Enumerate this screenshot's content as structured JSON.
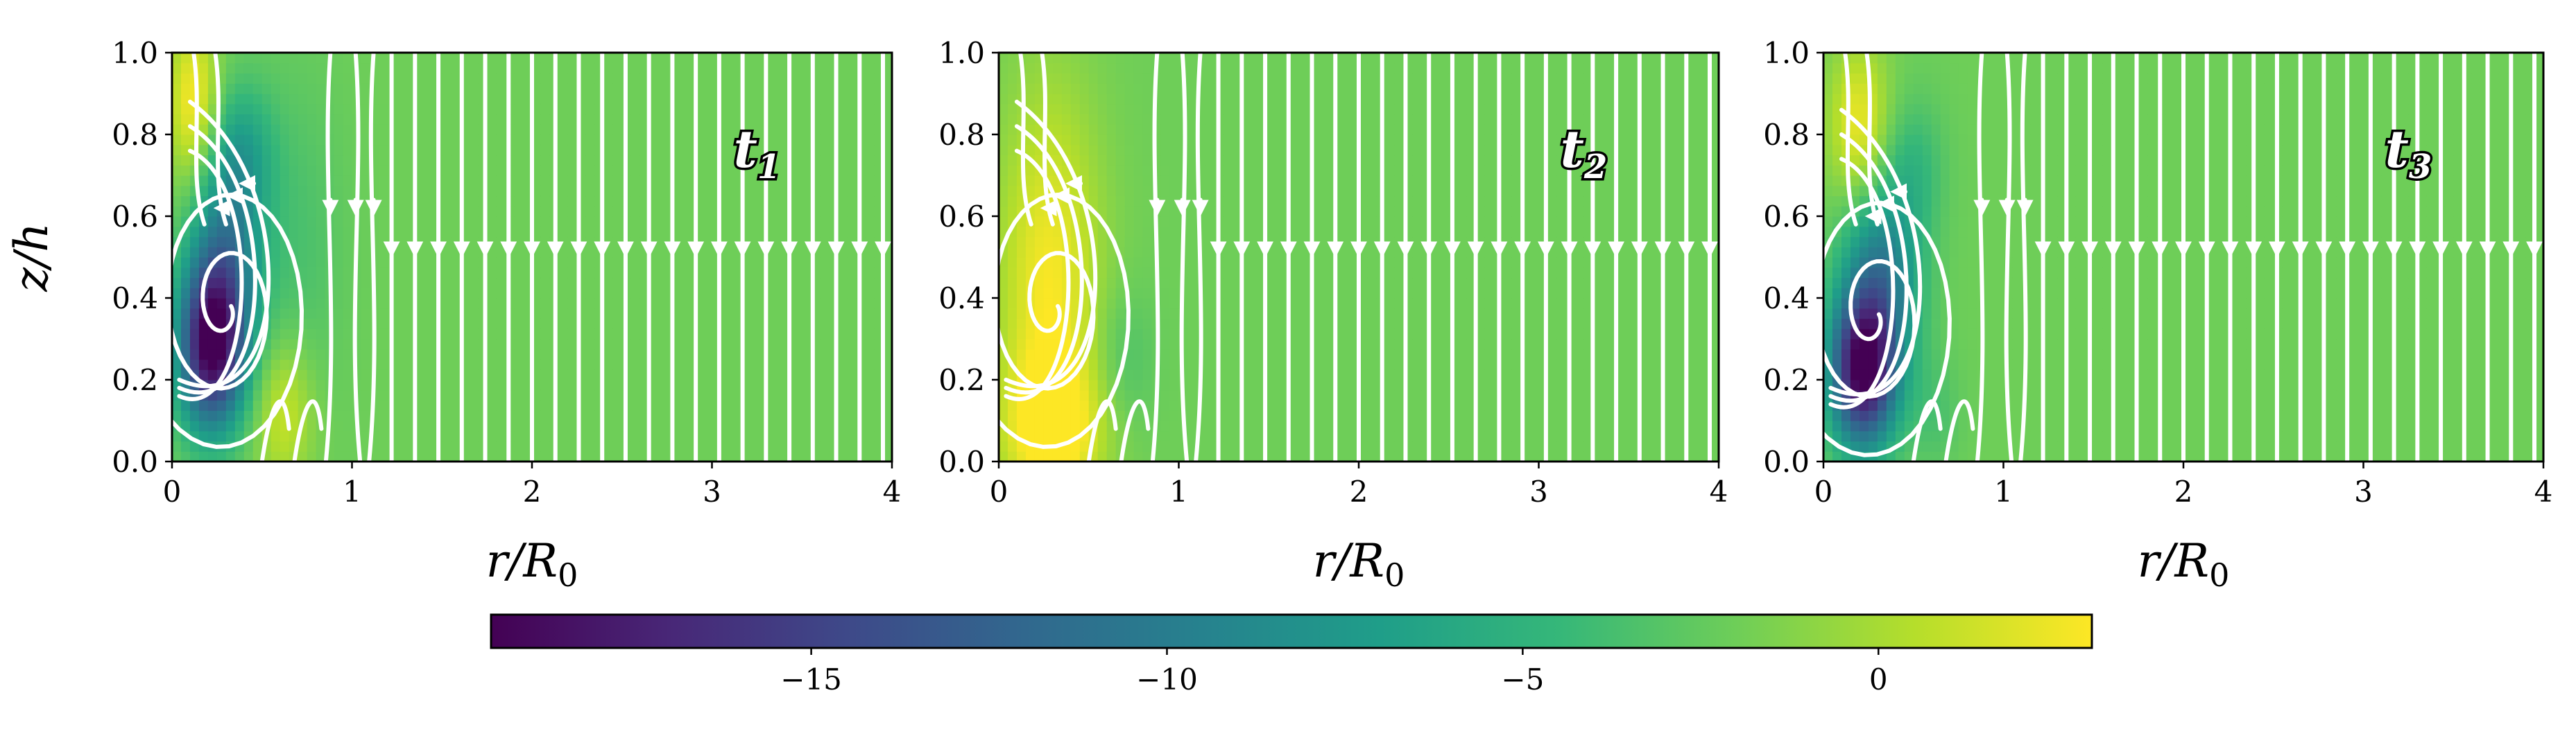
{
  "figure": {
    "title": "",
    "colormap": "viridis",
    "colormap_stops": [
      "#440154",
      "#482777",
      "#3e4989",
      "#31688e",
      "#26828e",
      "#1f9e89",
      "#35b779",
      "#6ece58",
      "#b5de2b",
      "#fde725"
    ],
    "background_color": "#8fd744",
    "streamline_color": "#ffffff"
  },
  "chart_data": [
    {
      "type": "heatmap",
      "panel": "t1",
      "title": "",
      "annotation": {
        "base": "t",
        "sub": "1"
      },
      "xlabel": {
        "base": "r/R",
        "sub": "0"
      },
      "ylabel": "z/h",
      "xlim": [
        0,
        4
      ],
      "ylim": [
        0,
        1
      ],
      "xticks": [
        "0",
        "1",
        "2",
        "3",
        "4"
      ],
      "yticks": [
        "0.0",
        "0.2",
        "0.4",
        "0.6",
        "0.8",
        "1.0"
      ],
      "background_value": -2,
      "features": [
        {
          "r": 0.22,
          "z": 0.28,
          "sr": 0.13,
          "sz": 0.14,
          "value": -19.0
        },
        {
          "r": 0.3,
          "z": 0.5,
          "sr": 0.14,
          "sz": 0.16,
          "value": -9.0
        },
        {
          "r": 0.38,
          "z": 0.75,
          "sr": 0.13,
          "sz": 0.12,
          "value": -6.5
        },
        {
          "r": 0.12,
          "z": 0.88,
          "sr": 0.1,
          "sz": 0.14,
          "value": 3.0
        },
        {
          "r": 0.62,
          "z": 0.12,
          "sr": 0.12,
          "sz": 0.13,
          "value": 1.5
        },
        {
          "r": 0.7,
          "z": 0.52,
          "sr": 0.18,
          "sz": 0.3,
          "value": -3.5
        }
      ],
      "vortex": {
        "r": 0.3,
        "z": 0.38
      },
      "uniform_downflow_z": 0.53
    },
    {
      "type": "heatmap",
      "panel": "t2",
      "title": "",
      "annotation": {
        "base": "t",
        "sub": "2"
      },
      "xlabel": {
        "base": "r/R",
        "sub": "0"
      },
      "ylabel": "",
      "xlim": [
        0,
        4
      ],
      "ylim": [
        0,
        1
      ],
      "xticks": [
        "0",
        "1",
        "2",
        "3",
        "4"
      ],
      "yticks": [
        "0.0",
        "0.2",
        "0.4",
        "0.6",
        "0.8",
        "1.0"
      ],
      "background_value": -2,
      "features": [
        {
          "r": 0.28,
          "z": 0.42,
          "sr": 0.2,
          "sz": 0.34,
          "value": 2.8
        },
        {
          "r": 0.3,
          "z": 0.08,
          "sr": 0.2,
          "sz": 0.12,
          "value": 2.5
        },
        {
          "r": 0.7,
          "z": 0.25,
          "sr": 0.12,
          "sz": 0.12,
          "value": -3.5
        }
      ],
      "vortex": {
        "r": 0.3,
        "z": 0.38
      },
      "uniform_downflow_z": 0.53
    },
    {
      "type": "heatmap",
      "panel": "t3",
      "title": "",
      "annotation": {
        "base": "t",
        "sub": "3"
      },
      "xlabel": {
        "base": "r/R",
        "sub": "0"
      },
      "ylabel": "",
      "xlim": [
        0,
        4
      ],
      "ylim": [
        0,
        1
      ],
      "xticks": [
        "0",
        "1",
        "2",
        "3",
        "4"
      ],
      "yticks": [
        "0.0",
        "0.2",
        "0.4",
        "0.6",
        "0.8",
        "1.0"
      ],
      "background_value": -2,
      "features": [
        {
          "r": 0.22,
          "z": 0.22,
          "sr": 0.13,
          "sz": 0.13,
          "value": -19.0
        },
        {
          "r": 0.32,
          "z": 0.45,
          "sr": 0.15,
          "sz": 0.16,
          "value": -10.0
        },
        {
          "r": 0.2,
          "z": 0.82,
          "sr": 0.12,
          "sz": 0.14,
          "value": 2.5
        },
        {
          "r": 0.5,
          "z": 0.72,
          "sr": 0.12,
          "sz": 0.12,
          "value": -4.5
        },
        {
          "r": 0.62,
          "z": 0.12,
          "sr": 0.1,
          "sz": 0.1,
          "value": -3.5
        }
      ],
      "vortex": {
        "r": 0.28,
        "z": 0.36
      },
      "uniform_downflow_z": 0.53
    }
  ],
  "colorbar": {
    "vmin": -19.5,
    "vmax": 3.0,
    "ticks": [
      -15,
      -10,
      -5,
      0
    ],
    "tick_labels": [
      "−15",
      "−10",
      "−5",
      "0"
    ],
    "orientation": "horizontal",
    "placement": "bottom"
  }
}
